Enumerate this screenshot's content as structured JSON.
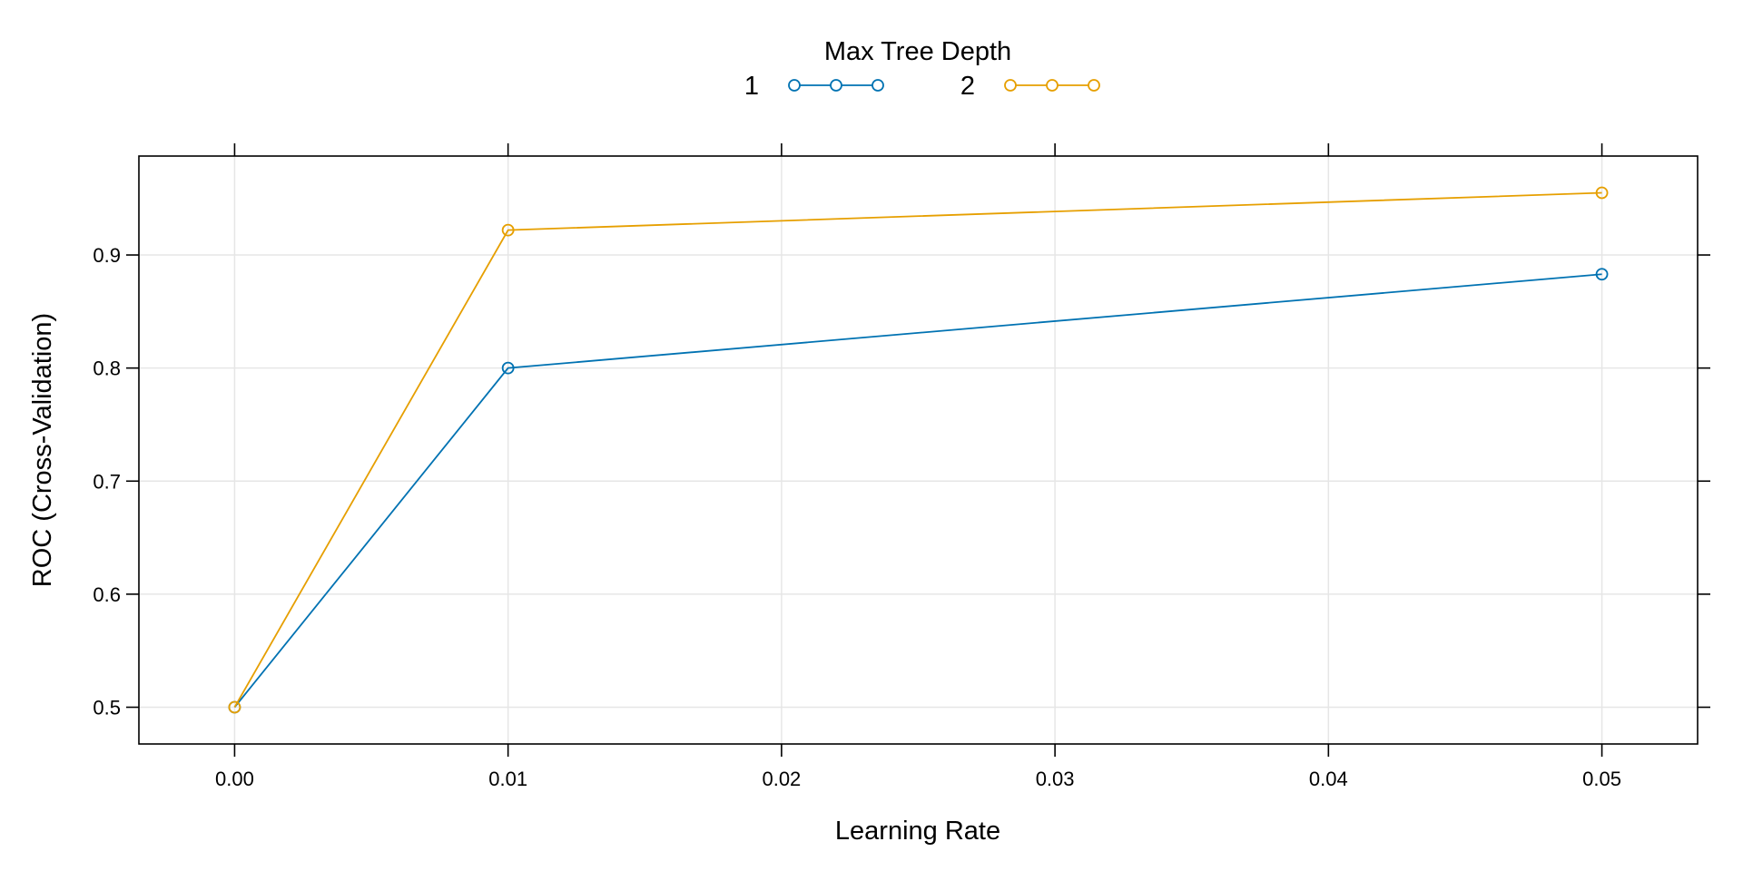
{
  "chart_data": {
    "type": "line",
    "xlabel": "Learning Rate",
    "ylabel": "ROC (Cross-Validation)",
    "xlim": [
      -0.0035,
      0.0535
    ],
    "ylim": [
      0.4675,
      0.9875
    ],
    "x_ticks": [
      0.0,
      0.01,
      0.02,
      0.03,
      0.04,
      0.05
    ],
    "x_tick_labels": [
      "0.00",
      "0.01",
      "0.02",
      "0.03",
      "0.04",
      "0.05"
    ],
    "y_ticks": [
      0.5,
      0.6,
      0.7,
      0.8,
      0.9
    ],
    "y_tick_labels": [
      "0.5",
      "0.6",
      "0.7",
      "0.8",
      "0.9"
    ],
    "grid": true,
    "legend": {
      "title": "Max Tree Depth",
      "placement": "top-center"
    },
    "x": [
      0.0,
      0.01,
      0.05
    ],
    "series": [
      {
        "name": "1",
        "color": "#0072B2",
        "values": [
          0.5,
          0.8,
          0.883
        ]
      },
      {
        "name": "2",
        "color": "#E69F00",
        "values": [
          0.5,
          0.922,
          0.955
        ]
      }
    ]
  }
}
